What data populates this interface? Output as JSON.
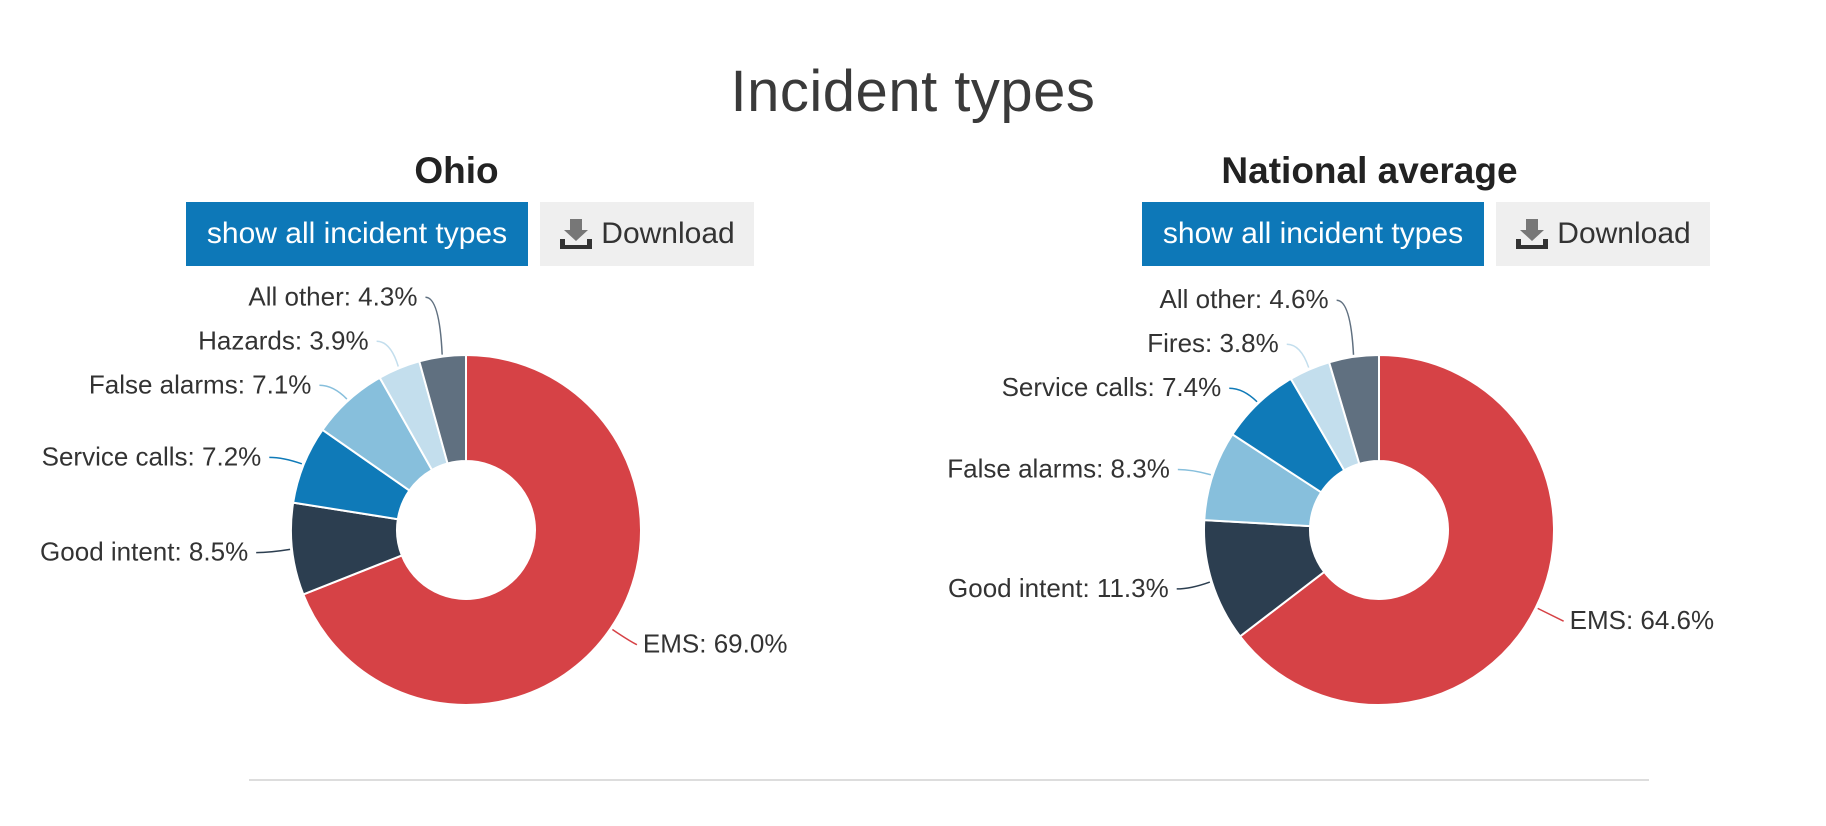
{
  "page": {
    "title": "Incident types"
  },
  "buttons": {
    "show_all": "show all incident types",
    "download": "Download"
  },
  "colors": {
    "EMS": "#d64246",
    "Good intent": "#2c3e50",
    "Service calls": "#0f7ab8",
    "False alarms": "#87bfdc",
    "Hazards": "#c3deed",
    "Fires": "#c3deed",
    "All other": "#607080"
  },
  "chart_data": [
    {
      "type": "pie",
      "title": "Ohio",
      "slices": [
        {
          "label": "EMS",
          "value": 69.0,
          "text": "EMS: 69.0%"
        },
        {
          "label": "Good intent",
          "value": 8.5,
          "text": "Good intent: 8.5%"
        },
        {
          "label": "Service calls",
          "value": 7.2,
          "text": "Service calls: 7.2%"
        },
        {
          "label": "False alarms",
          "value": 7.1,
          "text": "False alarms: 7.1%"
        },
        {
          "label": "Hazards",
          "value": 3.9,
          "text": "Hazards: 3.9%"
        },
        {
          "label": "All other",
          "value": 4.3,
          "text": "All other: 4.3%"
        }
      ]
    },
    {
      "type": "pie",
      "title": "National average",
      "slices": [
        {
          "label": "EMS",
          "value": 64.6,
          "text": "EMS: 64.6%"
        },
        {
          "label": "Good intent",
          "value": 11.3,
          "text": "Good intent: 11.3%"
        },
        {
          "label": "False alarms",
          "value": 8.3,
          "text": "False alarms: 8.3%"
        },
        {
          "label": "Service calls",
          "value": 7.4,
          "text": "Service calls: 7.4%"
        },
        {
          "label": "Fires",
          "value": 3.8,
          "text": "Fires: 3.8%"
        },
        {
          "label": "All other",
          "value": 4.6,
          "text": "All other: 4.6%"
        }
      ]
    }
  ]
}
